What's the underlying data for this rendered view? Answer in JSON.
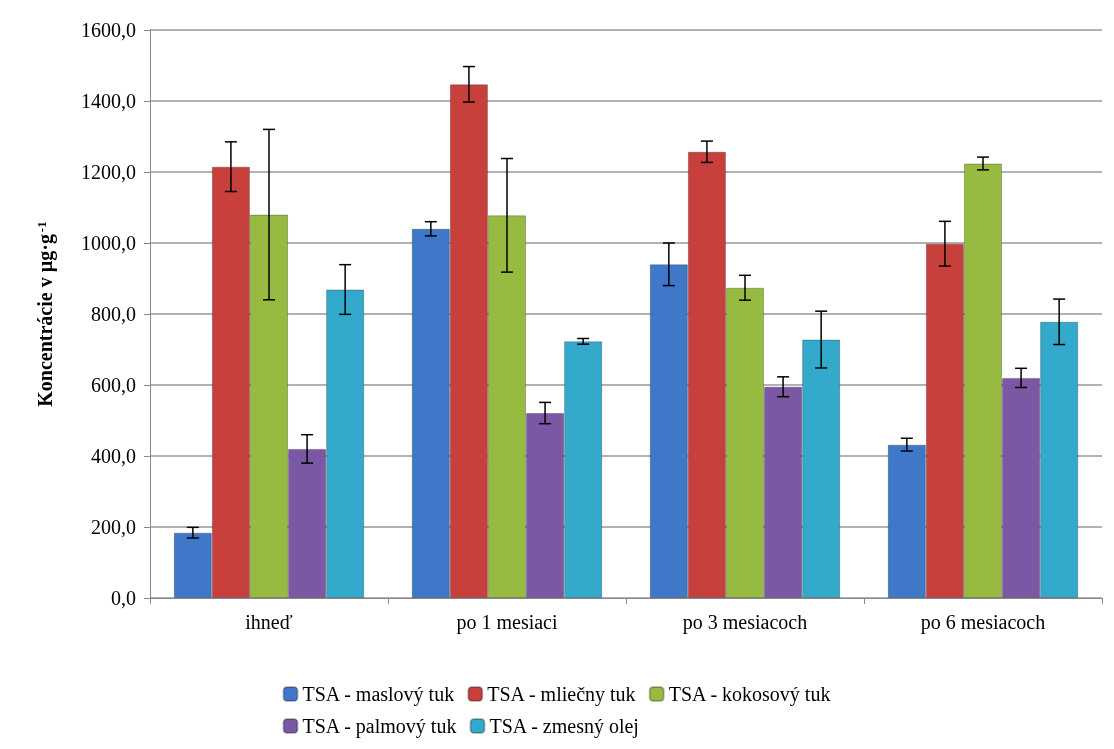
{
  "chart_data": {
    "type": "bar",
    "ylabel": "Koncentrácie v µg·g$^{-1}$",
    "categories": [
      "ihneď",
      "po 1 mesiaci",
      "po 3 mesiacoch",
      "po 6 mesiacoch"
    ],
    "series": [
      {
        "name": "TSA - maslový tuk",
        "color": "#3f78c8",
        "values": [
          184,
          1040,
          940,
          432
        ],
        "errors": [
          15,
          20,
          60,
          18
        ]
      },
      {
        "name": "TSA - mliečny tuk",
        "color": "#c8403c",
        "values": [
          1215,
          1447,
          1257,
          998
        ],
        "errors": [
          70,
          50,
          30,
          63
        ]
      },
      {
        "name": "TSA - kokosový tuk",
        "color": "#96bb40",
        "values": [
          1080,
          1078,
          874,
          1224
        ],
        "errors": [
          240,
          160,
          35,
          18
        ]
      },
      {
        "name": "TSA - palmový tuk",
        "color": "#7a58a4",
        "values": [
          420,
          521,
          595,
          620
        ],
        "errors": [
          40,
          30,
          28,
          27
        ]
      },
      {
        "name": "TSA - zmesný olej",
        "color": "#33aacc",
        "values": [
          869,
          723,
          728,
          778
        ],
        "errors": [
          70,
          8,
          80,
          64
        ]
      }
    ],
    "ylim": [
      0,
      1600
    ],
    "yticks": [
      {
        "value": 0,
        "label": "0,0"
      },
      {
        "value": 200,
        "label": "200,0"
      },
      {
        "value": 400,
        "label": "400,0"
      },
      {
        "value": 600,
        "label": "600,0"
      },
      {
        "value": 800,
        "label": "800,0"
      },
      {
        "value": 1000,
        "label": "1000,0"
      },
      {
        "value": 1200,
        "label": "1200,0"
      },
      {
        "value": 1400,
        "label": "1400,0"
      },
      {
        "value": 1600,
        "label": "1600,0"
      }
    ],
    "grid": "y",
    "legend": "bottom"
  }
}
